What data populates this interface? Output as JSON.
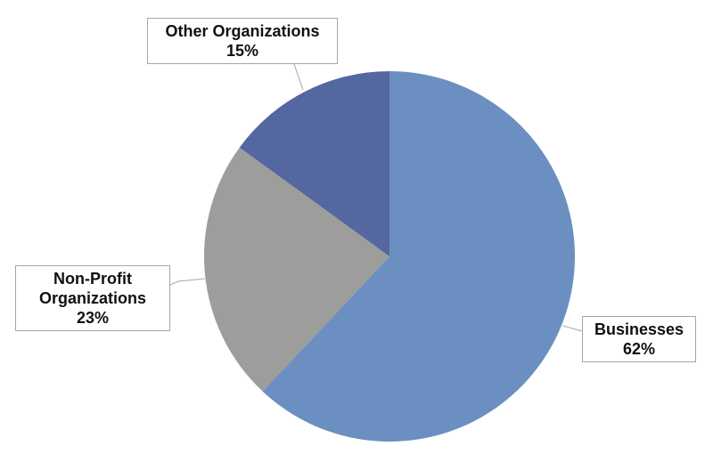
{
  "chart_data": {
    "type": "pie",
    "categories": [
      "Businesses",
      "Non-Profit Organizations",
      "Other Organizations"
    ],
    "values": [
      62,
      23,
      15
    ],
    "value_labels": [
      "62%",
      "23%",
      "15%"
    ],
    "colors": [
      "#6b8fc0",
      "#9d9d9c",
      "#5567a1"
    ]
  }
}
